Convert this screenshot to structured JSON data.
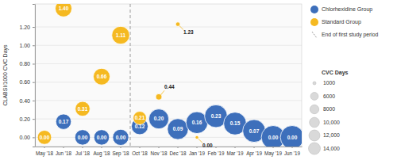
{
  "chart_data": {
    "type": "bubble",
    "y_label": "CLABSI/1000 CVC Days",
    "categories": [
      "May '18",
      "Jun '18",
      "Jul '18",
      "Aug '18",
      "Sep '18",
      "Oct '18",
      "Nov '18",
      "Dec '18",
      "Jan '19",
      "Feb '19",
      "Mar '19",
      "Apr '19",
      "May '19",
      "Jun '19"
    ],
    "series": [
      {
        "name": "Chlorhexidine Group",
        "color": "#3d6fbb",
        "values": [
          null,
          0.17,
          0,
          0,
          0,
          0.12,
          0.2,
          0.09,
          0.16,
          0.23,
          0.15,
          0.07,
          0,
          0
        ],
        "value_labels": [
          null,
          "0.17",
          "0.00",
          "0.00",
          "0.00",
          "0.12",
          "0.20",
          "0.09",
          "0.16",
          "0.23",
          "0.15",
          "0.07",
          "0.00",
          "0.00"
        ],
        "size": [
          null,
          6000,
          6000,
          6000,
          6500,
          7000,
          10000,
          11000,
          12000,
          13000,
          13000,
          13000,
          14000,
          14000
        ]
      },
      {
        "name": "Standard Group",
        "color": "#f5b921",
        "values": [
          0,
          1.4,
          0.31,
          0.66,
          1.11,
          0.21,
          0.44,
          1.23,
          0,
          null,
          null,
          null,
          null,
          null
        ],
        "value_labels": [
          "0.00",
          "1.40",
          "0.31",
          "0.66",
          "1.11",
          "0.21",
          "0.44",
          "1.23",
          "0.00",
          null,
          null,
          null,
          null,
          null
        ],
        "size": [
          5000,
          7000,
          5500,
          7000,
          8000,
          4500,
          1000,
          500,
          300,
          null,
          null,
          null,
          null,
          null
        ]
      }
    ],
    "ylim": [
      -0.1,
      1.45
    ],
    "yticks": [
      {
        "value": 0,
        "label": "0.00"
      },
      {
        "value": 0.2,
        "label": "0.20"
      },
      {
        "value": 0.4,
        "label": "0.40"
      },
      {
        "value": 0.6,
        "label": "0.60"
      },
      {
        "value": 0.8,
        "label": "0.80"
      },
      {
        "value": 1,
        "label": "1.00"
      },
      {
        "value": 1.2,
        "label": "1.20"
      }
    ],
    "grid": true,
    "legend": "right",
    "data_labels": true,
    "reference_line": {
      "label": "End of first study period",
      "after": "Sep '18",
      "line_style": "dashed"
    },
    "size_legend": {
      "title": "CVC Days",
      "values": [
        1000,
        6000,
        8000,
        {
          "value": 10000,
          "label": "10,000"
        },
        {
          "value": 12000,
          "label": "12,000"
        },
        {
          "value": 14000,
          "label": "14,000"
        }
      ]
    }
  }
}
